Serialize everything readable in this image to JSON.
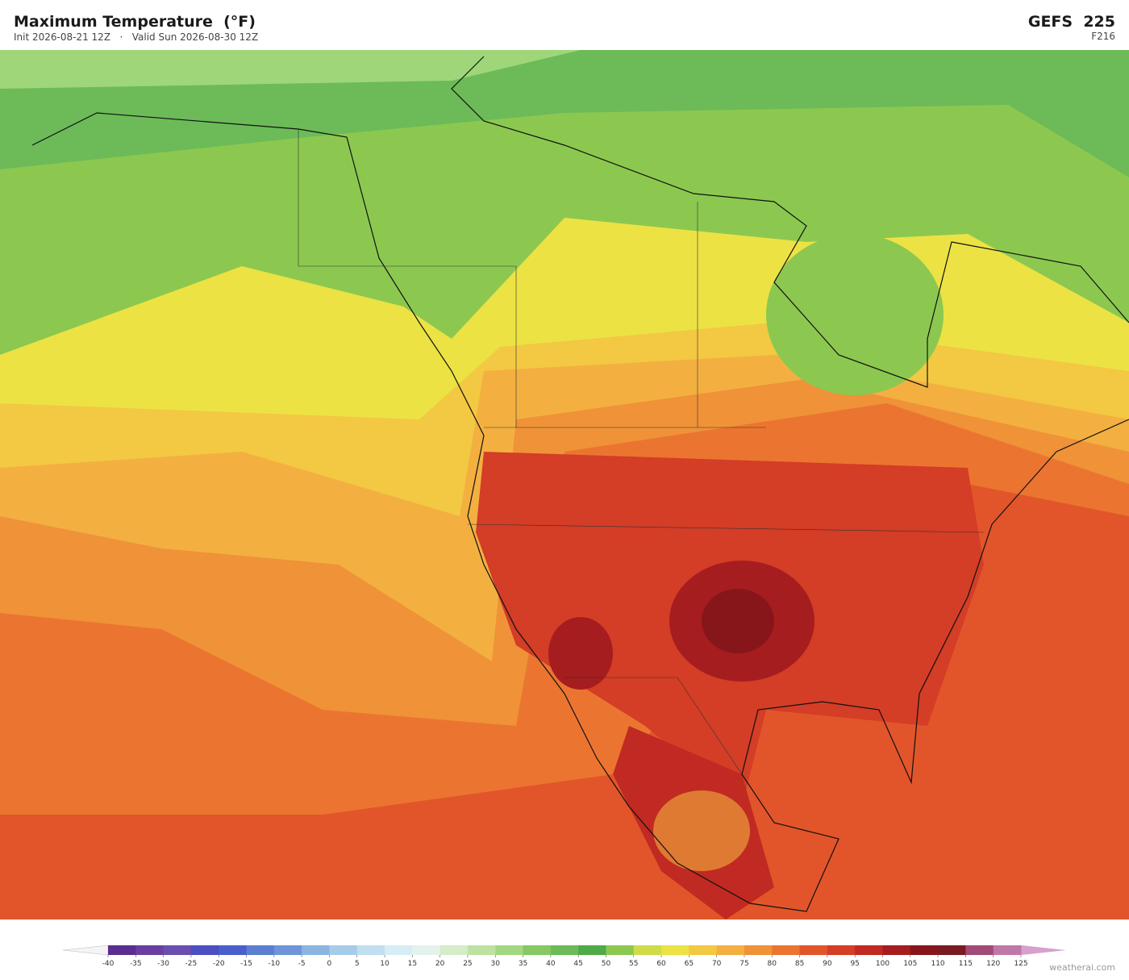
{
  "header": {
    "title": "Maximum Temperature  (°F)",
    "subtitle": "Init 2026-08-21 12Z   ·   Valid Sun 2026-08-30 12Z",
    "model": "GEFS  225",
    "forecast_hour": "F216"
  },
  "colorbar": {
    "levels": [
      -40,
      -35,
      -30,
      -25,
      -20,
      -15,
      -10,
      -5,
      0,
      5,
      10,
      15,
      20,
      25,
      30,
      35,
      40,
      45,
      50,
      55,
      60,
      65,
      70,
      75,
      80,
      85,
      90,
      95,
      100,
      105,
      110,
      115,
      120,
      125
    ],
    "colors": [
      "#5b2d8e",
      "#6b3fa0",
      "#6a4fb0",
      "#4b4fc0",
      "#4a5fcc",
      "#5a7fd0",
      "#6e95d8",
      "#8ab5e0",
      "#a5cce8",
      "#c0dff0",
      "#d7ecf4",
      "#e4f2ec",
      "#d4ecc8",
      "#bde2a0",
      "#a3d880",
      "#86c864",
      "#6cbb58",
      "#4faa48",
      "#8cc850",
      "#cfdc48",
      "#ece244",
      "#f3c842",
      "#f3b040",
      "#ef9238",
      "#eb7530",
      "#e2552a",
      "#d43d26",
      "#c02a22",
      "#a51d1e",
      "#86161a",
      "#7a1a22",
      "#a24a78",
      "#c078a8"
    ],
    "under_color": "#f4f4f4",
    "over_color": "#d8a0cc"
  },
  "footer": {
    "credit": "weatherai.com"
  }
}
